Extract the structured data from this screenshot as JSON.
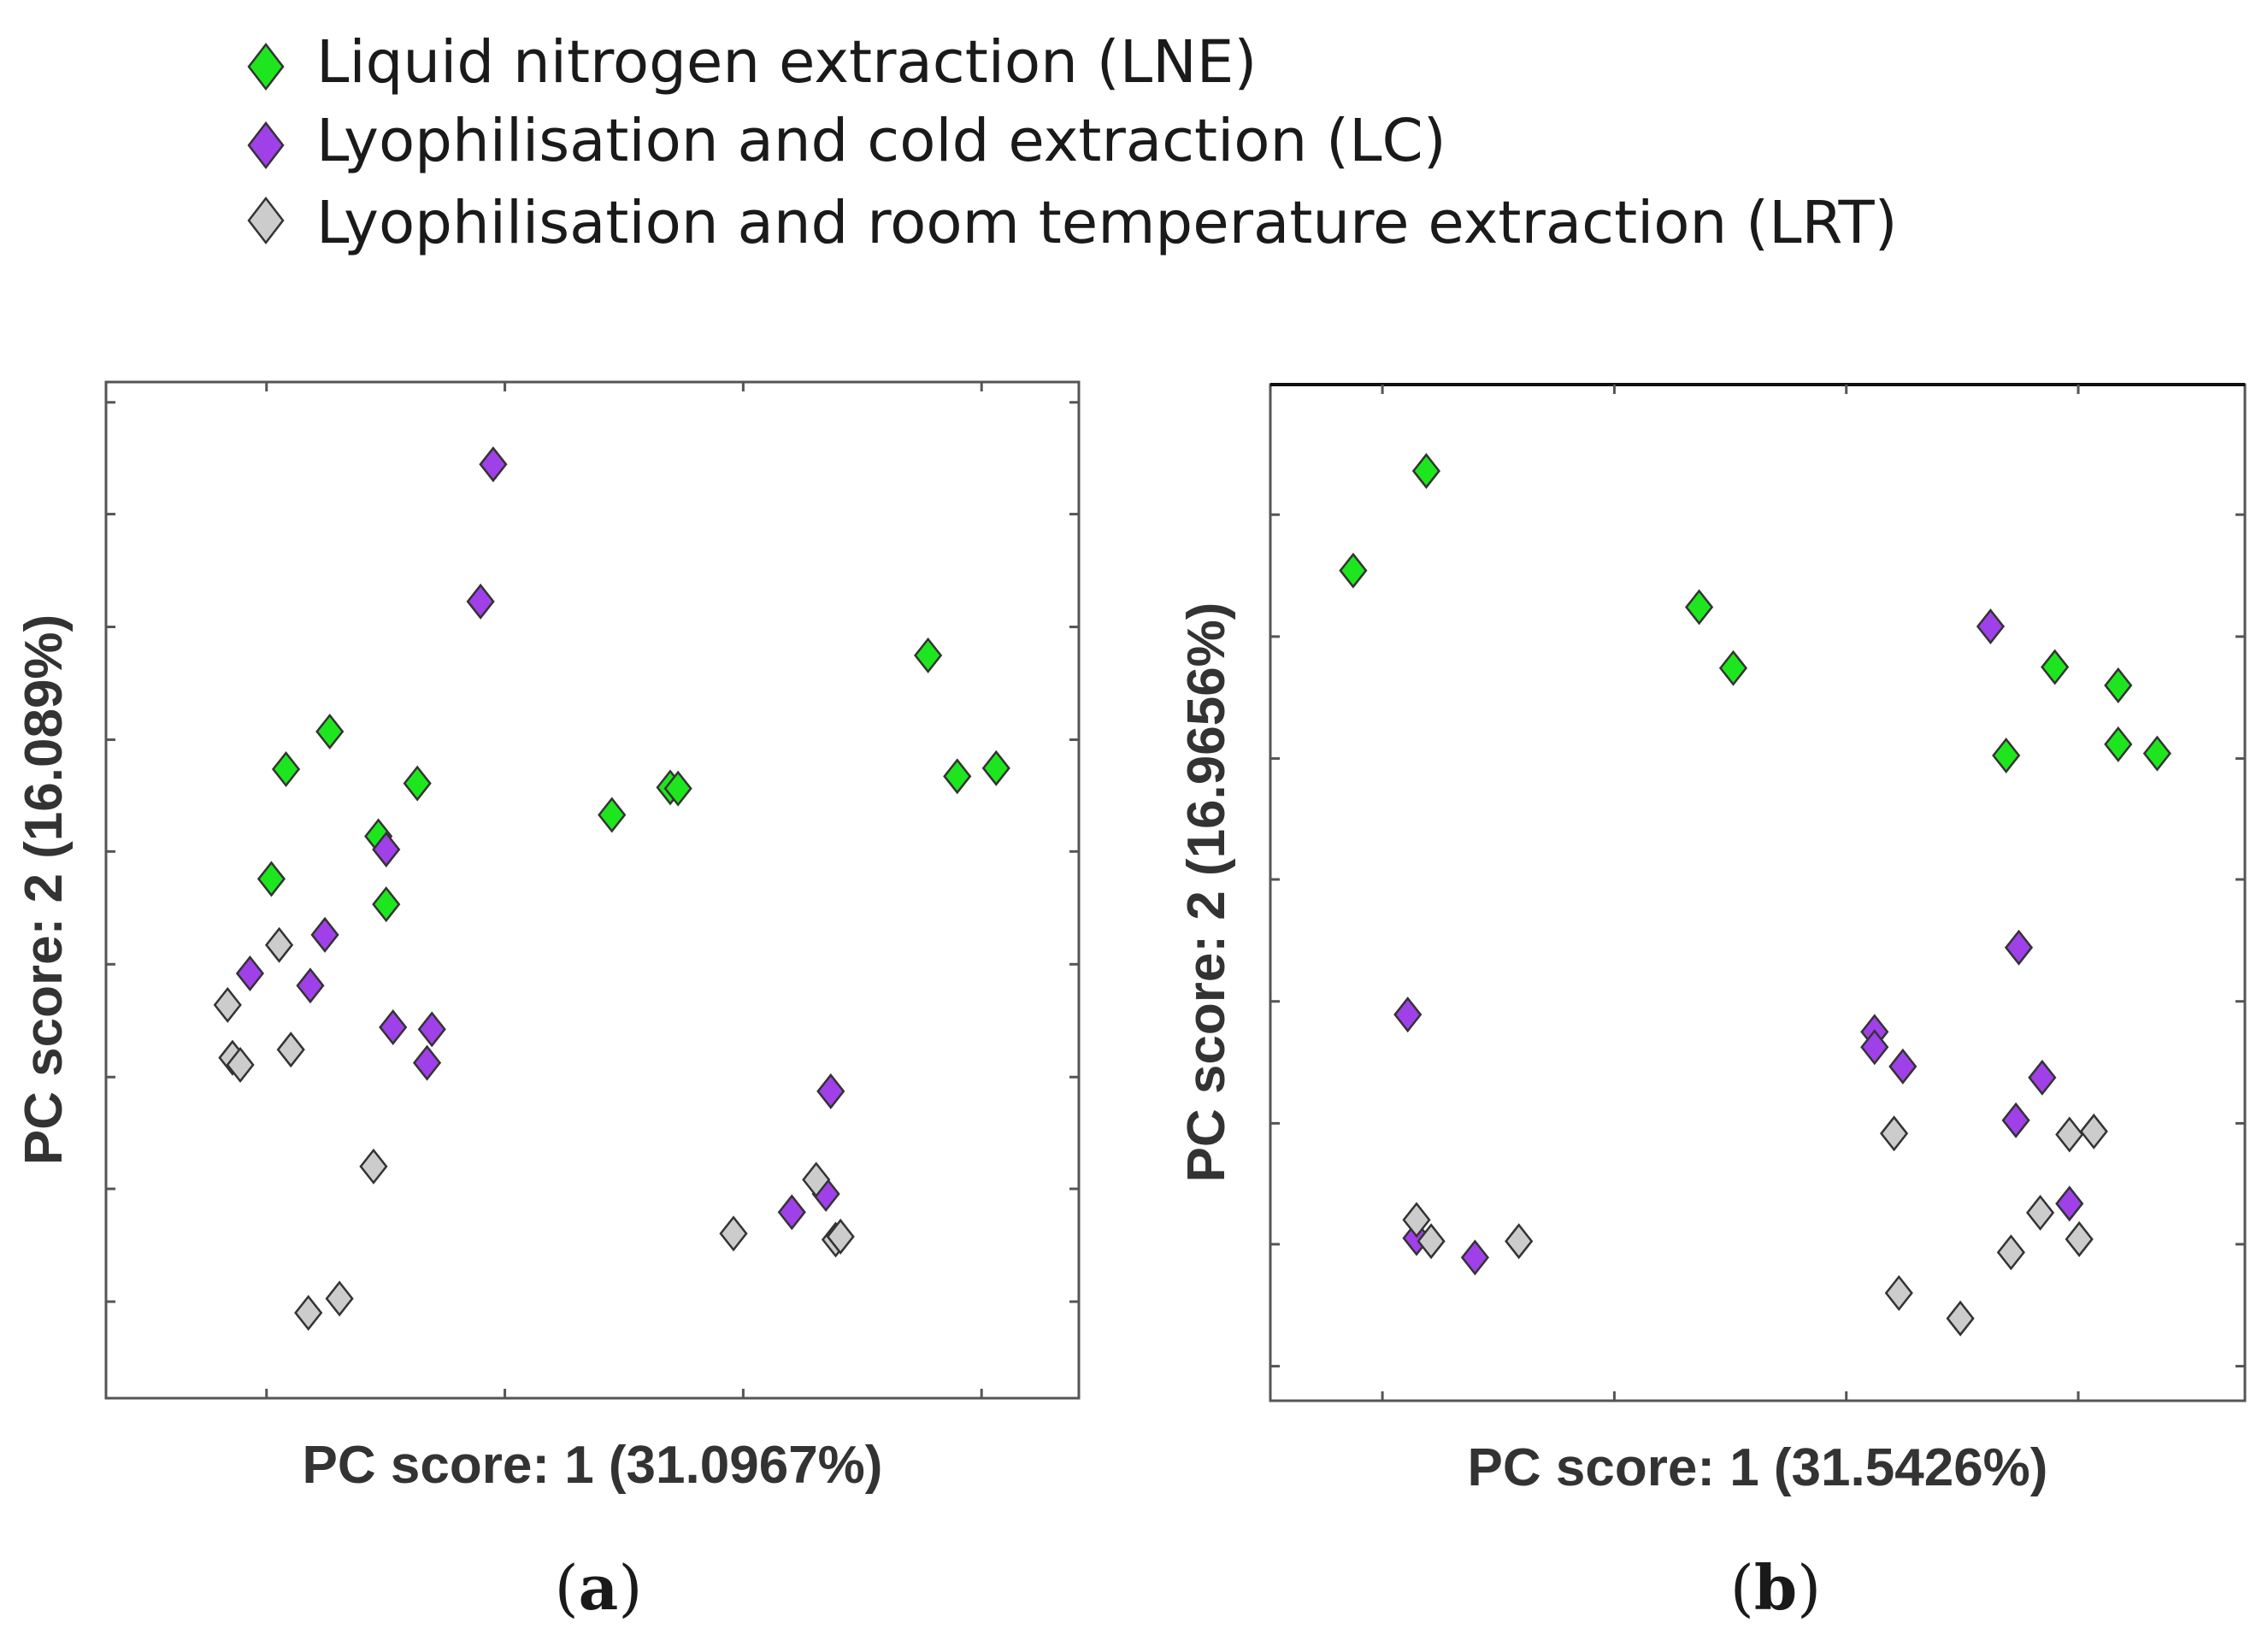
{
  "legend": [
    {
      "label": "Liquid nitrogen extraction (LNE)",
      "color": "#1ee61e",
      "icon": "diamond"
    },
    {
      "label": "Lyophilisation and cold extraction (LC)",
      "color": "#a040e8",
      "icon": "diamond"
    },
    {
      "label": "Lyophilisation and room temperature extraction (LRT)",
      "color": "#cccccc",
      "icon": "diamond"
    }
  ],
  "panels": [
    {
      "paren_open": "(",
      "letter": "a",
      "paren_close": ")"
    },
    {
      "paren_open": "(",
      "letter": "b",
      "paren_close": ")"
    }
  ],
  "chart_data": [
    {
      "type": "scatter",
      "panel": "a",
      "title": "",
      "xlabel": "PC score: 1 (31.0967%)",
      "ylabel": "PC score: 2 (16.089%)",
      "xlim": [
        0,
        100
      ],
      "ylim": [
        0,
        100
      ],
      "grid": false,
      "x_ticks": [
        16.5,
        41,
        65.5,
        90
      ],
      "y_ticks": [
        9.5,
        20.6,
        31.6,
        42.7,
        53.8,
        64.8,
        75.9,
        87.0,
        98.0
      ],
      "series": [
        {
          "name": "Liquid nitrogen extraction (LNE)",
          "color": "#1ee61e",
          "points": [
            [
              18.5,
              61.9
            ],
            [
              23.0,
              65.6
            ],
            [
              17.0,
              51.1
            ],
            [
              28.0,
              55.3
            ],
            [
              32.0,
              60.5
            ],
            [
              28.8,
              48.6
            ],
            [
              52.0,
              57.4
            ],
            [
              58.0,
              60.1
            ],
            [
              58.8,
              60.0
            ],
            [
              84.5,
              73.1
            ],
            [
              87.5,
              61.2
            ],
            [
              91.5,
              62.0
            ]
          ]
        },
        {
          "name": "Lyophilisation and cold extraction (LC)",
          "color": "#a040e8",
          "points": [
            [
              39.8,
              91.9
            ],
            [
              38.5,
              78.4
            ],
            [
              28.8,
              54.0
            ],
            [
              22.5,
              45.6
            ],
            [
              21.0,
              40.6
            ],
            [
              14.8,
              41.8
            ],
            [
              29.5,
              36.5
            ],
            [
              33.5,
              36.3
            ],
            [
              33.0,
              33.0
            ],
            [
              74.5,
              30.2
            ],
            [
              74.0,
              20.1
            ],
            [
              70.5,
              18.3
            ]
          ]
        },
        {
          "name": "Lyophilisation and room temperature extraction (LRT)",
          "color": "#cccccc",
          "points": [
            [
              17.8,
              44.6
            ],
            [
              12.5,
              38.7
            ],
            [
              13.0,
              33.5
            ],
            [
              13.8,
              32.8
            ],
            [
              19.0,
              34.3
            ],
            [
              27.5,
              22.8
            ],
            [
              20.8,
              8.4
            ],
            [
              24.0,
              9.8
            ],
            [
              64.5,
              16.2
            ],
            [
              73.0,
              21.5
            ],
            [
              75.0,
              15.6
            ],
            [
              75.5,
              15.9
            ]
          ]
        }
      ]
    },
    {
      "type": "scatter",
      "panel": "b",
      "title": "",
      "xlabel": "PC score: 1 (31.5426%)",
      "ylabel": "PC score: 2 (16.9656%)",
      "xlim": [
        0,
        100
      ],
      "ylim": [
        0,
        100
      ],
      "grid": false,
      "x_ticks": [
        11.5,
        35.3,
        59.1,
        82.9
      ],
      "y_ticks": [
        3.4,
        15.4,
        27.3,
        39.3,
        51.3,
        63.2,
        75.2,
        87.2
      ],
      "series": [
        {
          "name": "Liquid nitrogen extraction (LNE)",
          "color": "#1ee61e",
          "points": [
            [
              16.0,
              91.5
            ],
            [
              8.5,
              81.7
            ],
            [
              44.0,
              78.1
            ],
            [
              47.5,
              72.1
            ],
            [
              80.5,
              72.2
            ],
            [
              87.0,
              70.4
            ],
            [
              75.5,
              63.5
            ],
            [
              87.0,
              64.6
            ],
            [
              91.0,
              63.7
            ]
          ]
        },
        {
          "name": "Lyophilisation and cold extraction (LC)",
          "color": "#a040e8",
          "points": [
            [
              73.9,
              76.2
            ],
            [
              76.8,
              44.6
            ],
            [
              14.1,
              38.0
            ],
            [
              62.0,
              36.3
            ],
            [
              62.0,
              34.8
            ],
            [
              64.9,
              32.9
            ],
            [
              79.2,
              31.8
            ],
            [
              76.5,
              27.6
            ],
            [
              82.0,
              19.4
            ],
            [
              15.0,
              16.0
            ],
            [
              21.0,
              14.1
            ]
          ]
        },
        {
          "name": "Lyophilisation and room temperature extraction (LRT)",
          "color": "#cccccc",
          "points": [
            [
              64.0,
              26.3
            ],
            [
              82.0,
              26.2
            ],
            [
              84.5,
              26.5
            ],
            [
              15.0,
              17.8
            ],
            [
              16.5,
              15.7
            ],
            [
              25.5,
              15.7
            ],
            [
              79.0,
              18.5
            ],
            [
              76.0,
              14.6
            ],
            [
              83.0,
              15.9
            ],
            [
              64.5,
              10.6
            ],
            [
              70.8,
              8.1
            ]
          ]
        }
      ]
    }
  ]
}
